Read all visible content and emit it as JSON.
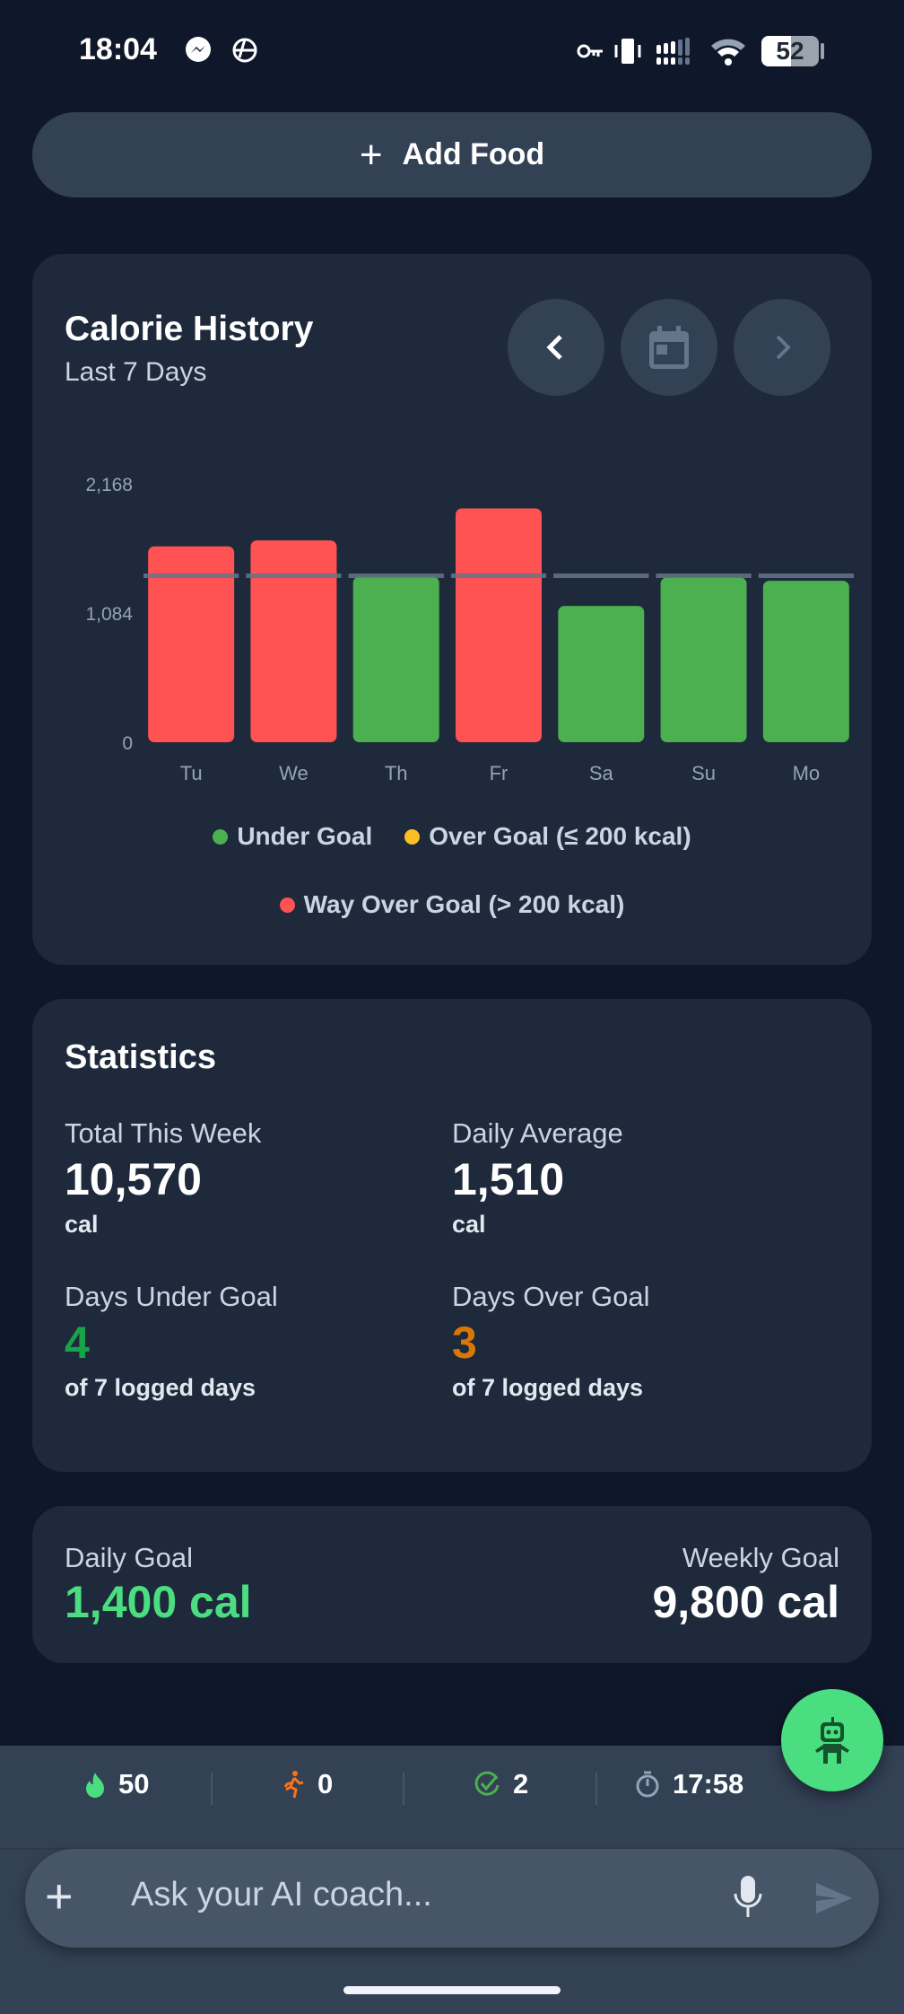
{
  "status_bar": {
    "time": "18:04",
    "battery": "52"
  },
  "add_food": {
    "label": "Add Food"
  },
  "history": {
    "title": "Calorie History",
    "subtitle": "Last 7 Days"
  },
  "chart_data": {
    "type": "bar",
    "categories": [
      "Tu",
      "We",
      "Th",
      "Fr",
      "Sa",
      "Su",
      "Mo"
    ],
    "values": [
      1643,
      1693,
      1389,
      1961,
      1143,
      1382,
      1354
    ],
    "status": [
      "way_over",
      "way_over",
      "under",
      "way_over",
      "under",
      "under",
      "under"
    ],
    "goal": 1400,
    "yticks": [
      "2,168",
      "1,084",
      "0"
    ],
    "ylim": [
      0,
      2168
    ],
    "colors": {
      "under": "#4caf50",
      "over": "#fbbf24",
      "way_over": "#ff5252",
      "goal_line": "#64748b"
    },
    "legend": [
      {
        "label": "Under Goal",
        "color": "#4caf50"
      },
      {
        "label": "Over Goal (≤ 200 kcal)",
        "color": "#fbbf24"
      },
      {
        "label": "Way Over Goal (> 200 kcal)",
        "color": "#ff5252"
      }
    ]
  },
  "statistics": {
    "title": "Statistics",
    "total_label": "Total This Week",
    "total_value": "10,570",
    "total_unit": "cal",
    "avg_label": "Daily Average",
    "avg_value": "1,510",
    "avg_unit": "cal",
    "under_label": "Days Under Goal",
    "under_value": "4",
    "under_sub": "of 7 logged days",
    "over_label": "Days Over Goal",
    "over_value": "3",
    "over_sub": "of 7 logged days"
  },
  "goals": {
    "daily_label": "Daily Goal",
    "daily_value": "1,400 cal",
    "weekly_label": "Weekly Goal",
    "weekly_value": "9,800 cal"
  },
  "bottom_stats": {
    "streak": "50",
    "activity": "0",
    "completed": "2",
    "timer": "17:58"
  },
  "chat": {
    "placeholder": "Ask your AI coach..."
  }
}
